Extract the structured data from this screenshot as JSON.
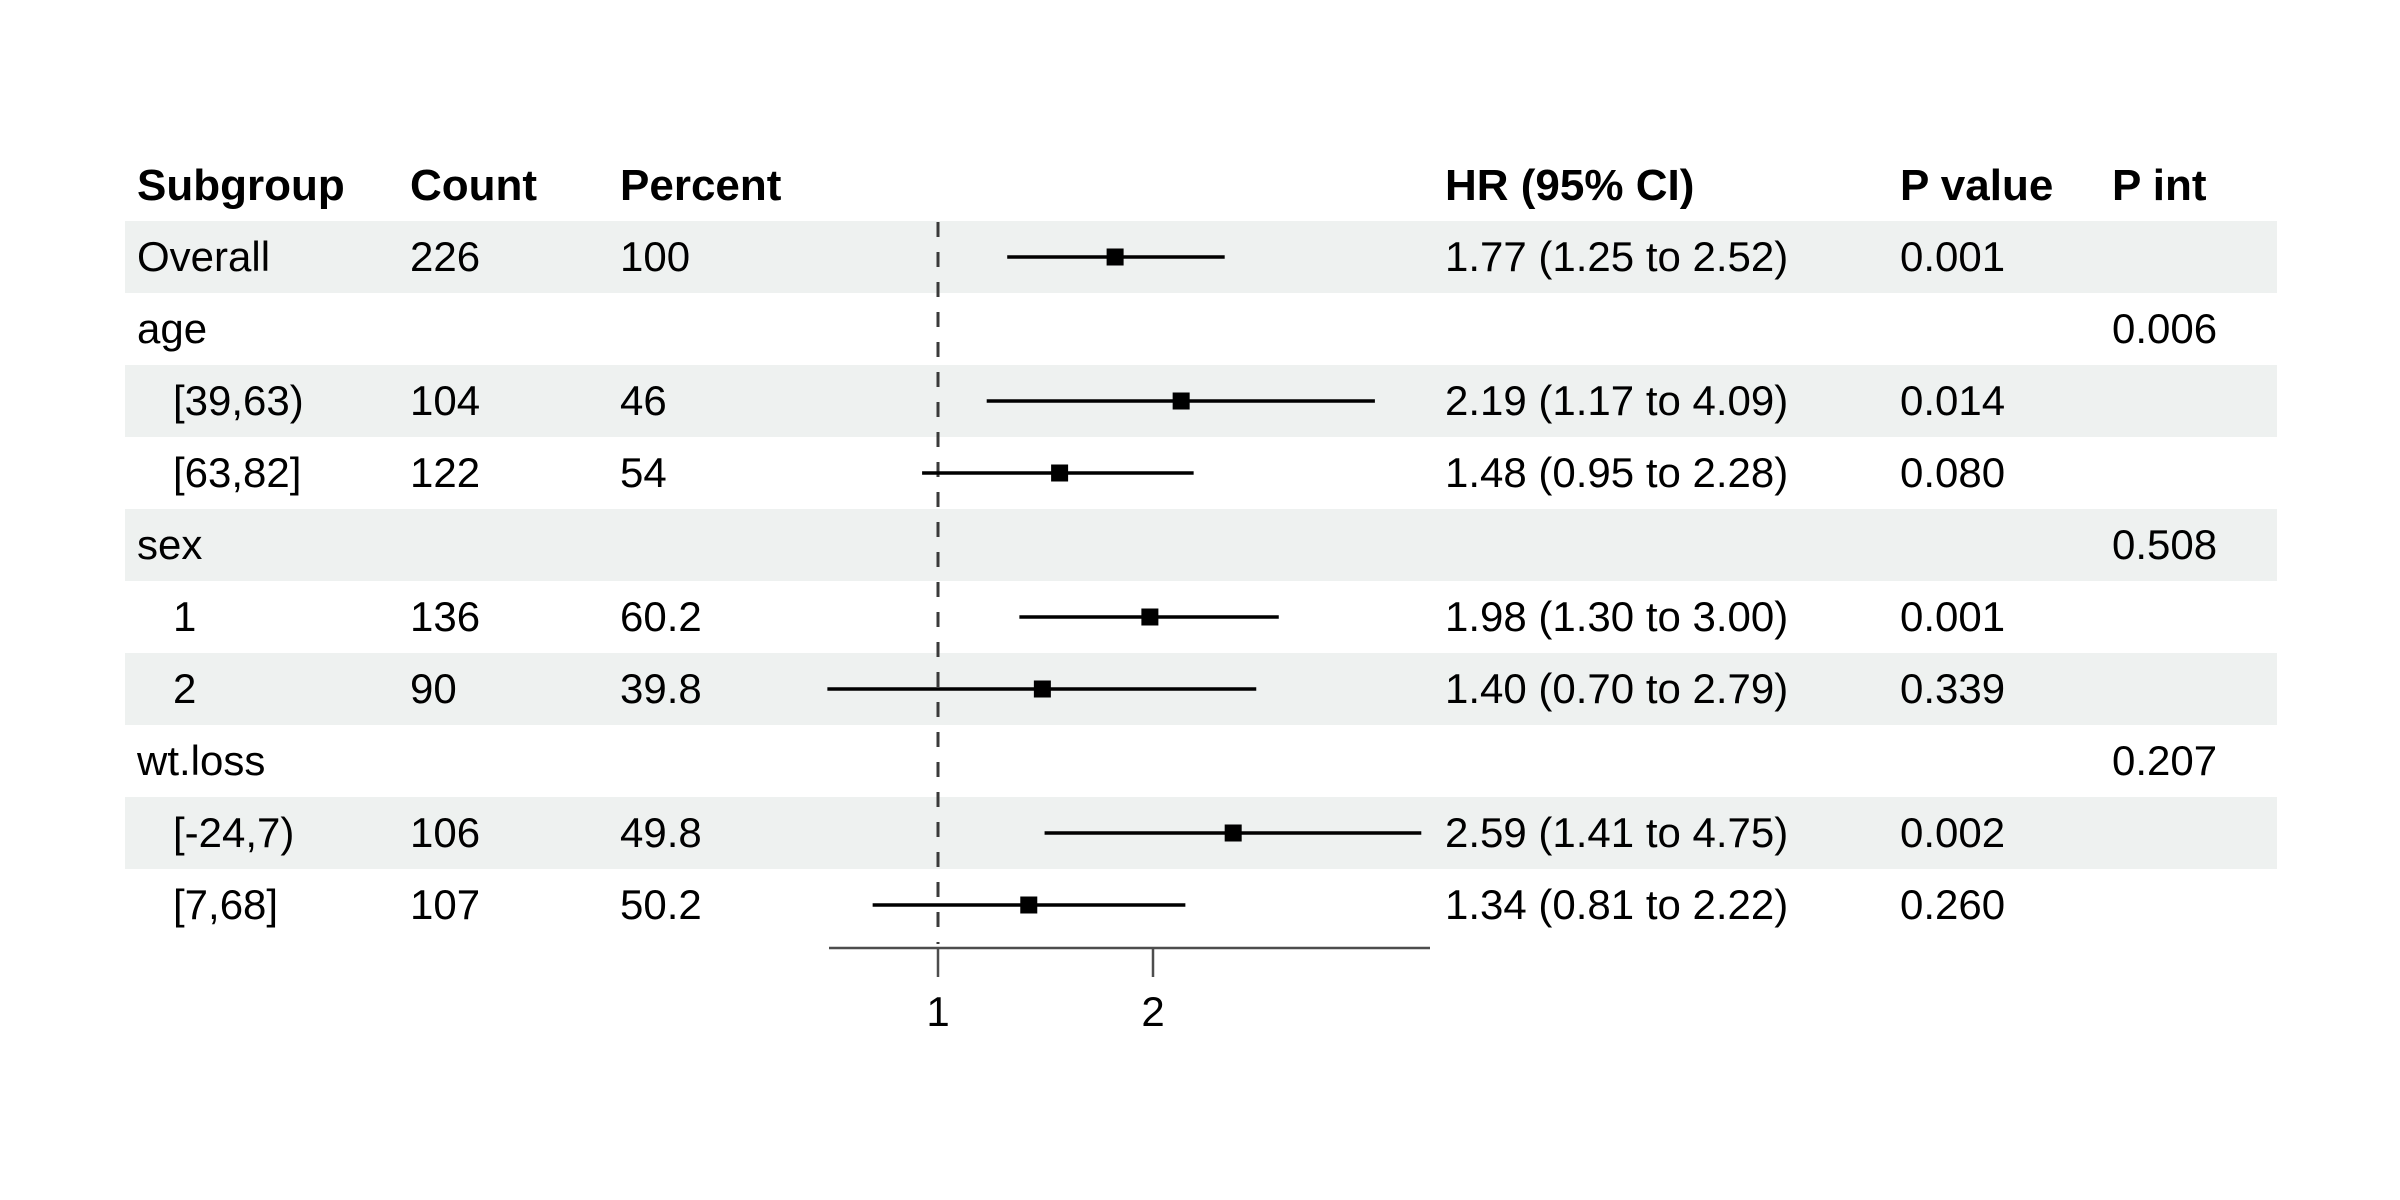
{
  "colors": {
    "background": "#ffffff",
    "stripe": "#eef1f0",
    "text": "#000000",
    "ci_line": "#000000",
    "marker": "#000000",
    "axis_line": "#4d4d4d",
    "reference_line": "#3a3a3a"
  },
  "table": {
    "headers": {
      "subgroup": "Subgroup",
      "count": "Count",
      "percent": "Percent",
      "hr_ci": "HR (95% CI)",
      "p_value": "P value",
      "p_int": "P int"
    },
    "rows": [
      {
        "subgroup": "Overall",
        "count": "226",
        "percent": "100",
        "hr_ci": "1.77 (1.25 to 2.52)",
        "p_value": "0.001",
        "p_int": ""
      },
      {
        "subgroup": "age",
        "count": "",
        "percent": "",
        "hr_ci": "",
        "p_value": "",
        "p_int": "0.006"
      },
      {
        "subgroup": "[39,63)",
        "count": "104",
        "percent": "46",
        "hr_ci": "2.19 (1.17 to 4.09)",
        "p_value": "0.014",
        "p_int": ""
      },
      {
        "subgroup": "[63,82]",
        "count": "122",
        "percent": "54",
        "hr_ci": "1.48 (0.95 to 2.28)",
        "p_value": "0.080",
        "p_int": ""
      },
      {
        "subgroup": "sex",
        "count": "",
        "percent": "",
        "hr_ci": "",
        "p_value": "",
        "p_int": "0.508"
      },
      {
        "subgroup": "1",
        "count": "136",
        "percent": "60.2",
        "hr_ci": "1.98 (1.30 to 3.00)",
        "p_value": "0.001",
        "p_int": ""
      },
      {
        "subgroup": "2",
        "count": "90",
        "percent": "39.8",
        "hr_ci": "1.40 (0.70 to 2.79)",
        "p_value": "0.339",
        "p_int": ""
      },
      {
        "subgroup": "wt.loss",
        "count": "",
        "percent": "",
        "hr_ci": "",
        "p_value": "",
        "p_int": "0.207"
      },
      {
        "subgroup": "[-24,7)",
        "count": "106",
        "percent": "49.8",
        "hr_ci": "2.59 (1.41 to 4.75)",
        "p_value": "0.002",
        "p_int": ""
      },
      {
        "subgroup": "[7,68]",
        "count": "107",
        "percent": "50.2",
        "hr_ci": "1.34 (0.81 to 2.22)",
        "p_value": "0.260",
        "p_int": ""
      }
    ]
  },
  "chart_data": {
    "type": "forest",
    "x_scale": "log",
    "log_base": 2,
    "x_ticks": [
      "1",
      "2"
    ],
    "x_tick_values": [
      1,
      2
    ],
    "reference_value": 1,
    "x_range": [
      0.7,
      4.89
    ],
    "estimate_label": "HR (95% CI)",
    "rows": [
      {
        "label": "Overall",
        "est": 1.77,
        "lo": 1.25,
        "hi": 2.52
      },
      {
        "label": "age",
        "est": null,
        "lo": null,
        "hi": null
      },
      {
        "label": "[39,63)",
        "est": 2.19,
        "lo": 1.17,
        "hi": 4.09
      },
      {
        "label": "[63,82]",
        "est": 1.48,
        "lo": 0.95,
        "hi": 2.28
      },
      {
        "label": "sex",
        "est": null,
        "lo": null,
        "hi": null
      },
      {
        "label": "1",
        "est": 1.98,
        "lo": 1.3,
        "hi": 3.0
      },
      {
        "label": "2",
        "est": 1.4,
        "lo": 0.7,
        "hi": 2.79
      },
      {
        "label": "wt.loss",
        "est": null,
        "lo": null,
        "hi": null
      },
      {
        "label": "[-24,7)",
        "est": 2.59,
        "lo": 1.41,
        "hi": 4.75
      },
      {
        "label": "[7,68]",
        "est": 1.34,
        "lo": 0.81,
        "hi": 2.22
      }
    ]
  }
}
